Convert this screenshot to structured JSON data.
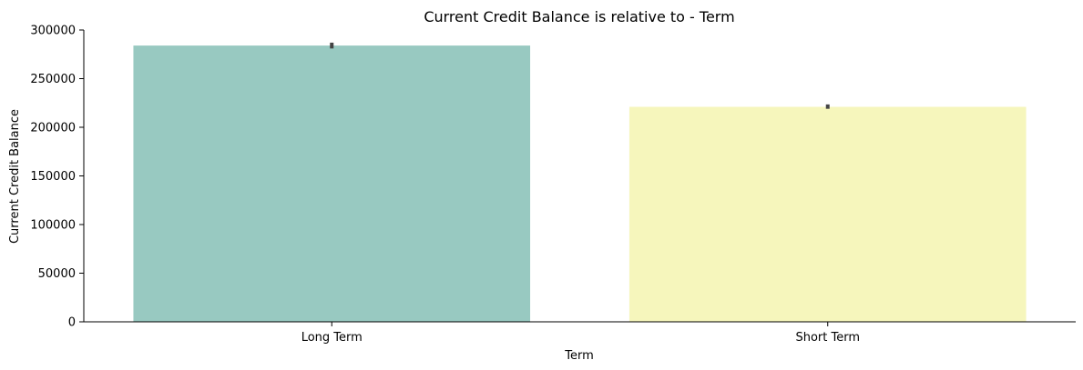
{
  "chart_data": {
    "type": "bar",
    "title": "Current Credit Balance is relative to - Term",
    "xlabel": "Term",
    "ylabel": "Current Credit Balance",
    "categories": [
      "Long Term",
      "Short Term"
    ],
    "values": [
      284000,
      221000
    ],
    "error_bars": [
      [
        281000,
        287000
      ],
      [
        219000,
        223500
      ]
    ],
    "colors": [
      "#98c9c1",
      "#f6f6bc"
    ],
    "error_bar_color": "#444444",
    "ylim": [
      0,
      300000
    ],
    "yticks": [
      0,
      50000,
      100000,
      150000,
      200000,
      250000,
      300000
    ],
    "ytick_labels": [
      "0",
      "50000",
      "100000",
      "150000",
      "200000",
      "250000",
      "300000"
    ],
    "grid": false,
    "legend": "none"
  }
}
